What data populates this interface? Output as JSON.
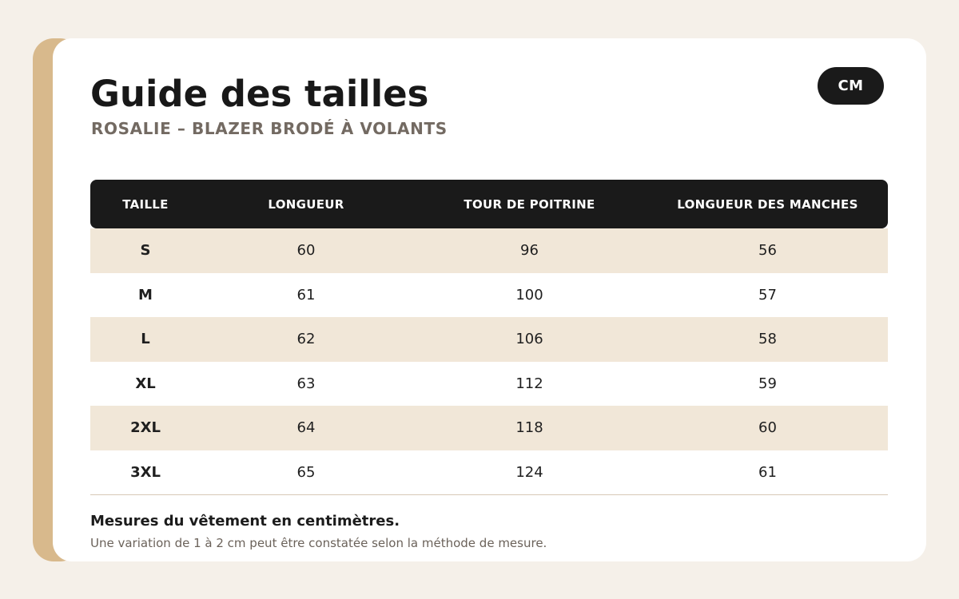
{
  "header": {
    "title": "Guide des tailles",
    "subtitle": "ROSALIE – BLAZER BRODÉ À VOLANTS",
    "unit_label": "CM"
  },
  "table": {
    "columns": [
      "TAILLE",
      "LONGUEUR",
      "TOUR DE POITRINE",
      "LONGUEUR DES MANCHES"
    ],
    "rows": [
      [
        "S",
        "60",
        "96",
        "56"
      ],
      [
        "M",
        "61",
        "100",
        "57"
      ],
      [
        "L",
        "62",
        "106",
        "58"
      ],
      [
        "XL",
        "63",
        "112",
        "59"
      ],
      [
        "2XL",
        "64",
        "118",
        "60"
      ],
      [
        "3XL",
        "65",
        "124",
        "61"
      ]
    ]
  },
  "footer": {
    "note_main": "Mesures du vêtement en centimètres.",
    "note_sub": "Une variation de 1 à 2 cm peut être constatée selon la méthode de mesure."
  },
  "colors": {
    "page_background": "#f5f0e9",
    "accent": "#d8b98c",
    "header_dark": "#1a1a1a",
    "row_alt": "#f1e7d8"
  }
}
